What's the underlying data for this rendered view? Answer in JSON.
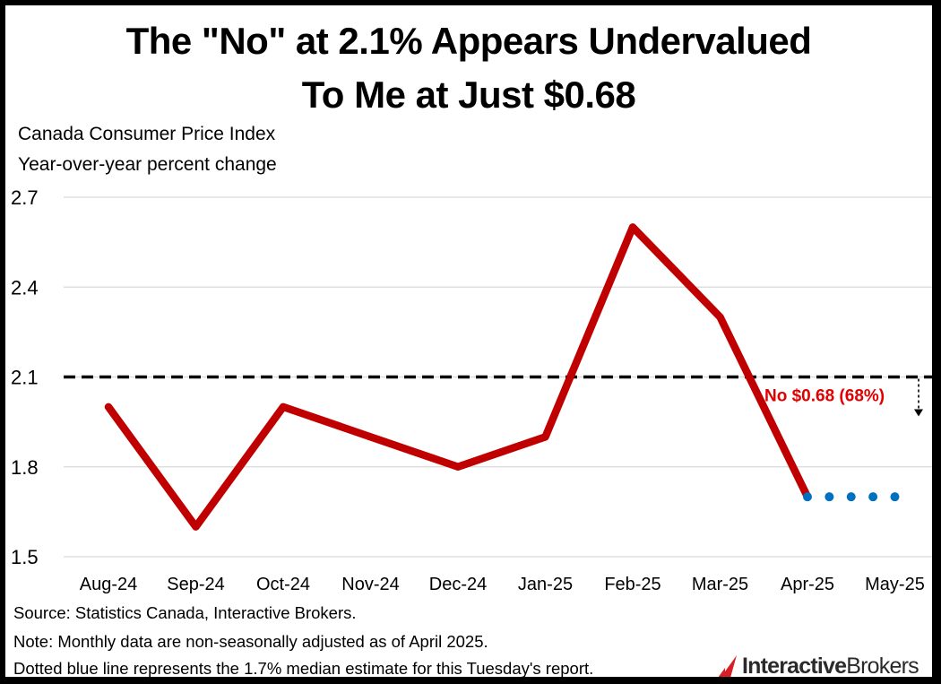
{
  "title": {
    "line1": "The \"No\" at 2.1% Appears Undervalued",
    "line2": "To Me at Just $0.68"
  },
  "subtitle": {
    "line1": "Canada Consumer Price Index",
    "line2": "Year-over-year percent change"
  },
  "footnotes": {
    "source": "Source: Statistics Canada, Interactive Brokers.",
    "note": "Note: Monthly data are non-seasonally adjusted as of April 2025.",
    "dotted": "Dotted blue line represents the 1.7% median estimate for this Tuesday's report."
  },
  "logo": {
    "part1": "Interactive",
    "part2": "Brokers"
  },
  "colors": {
    "actual_line": "#c00000",
    "estimate_dots": "#0070c0",
    "threshold_line": "#000000",
    "annotation_text": "#e00000",
    "logo_mark": "#d81f26",
    "gridline": "#d9d9d9"
  },
  "chart_data": {
    "type": "line",
    "categories": [
      "Aug-24",
      "Sep-24",
      "Oct-24",
      "Nov-24",
      "Dec-24",
      "Jan-25",
      "Feb-25",
      "Mar-25",
      "Apr-25",
      "May-25"
    ],
    "ylim": [
      1.5,
      2.7
    ],
    "yticks": [
      "1.5",
      "1.8",
      "2.1",
      "2.4",
      "2.7"
    ],
    "ytick_values": [
      1.5,
      1.8,
      2.1,
      2.4,
      2.7
    ],
    "grid": true,
    "series": [
      {
        "values": [
          2.0,
          1.6,
          2.0,
          1.9,
          1.8,
          1.9,
          2.6,
          2.3,
          1.7,
          null
        ],
        "style": "solid"
      },
      {
        "values": [
          null,
          null,
          null,
          null,
          null,
          null,
          null,
          null,
          1.7,
          1.7
        ],
        "style": "dotted"
      }
    ],
    "threshold": {
      "value": 2.1,
      "style": "dashed"
    },
    "annotation": {
      "text": "No $0.68 (68%)",
      "at": 2.1
    }
  }
}
